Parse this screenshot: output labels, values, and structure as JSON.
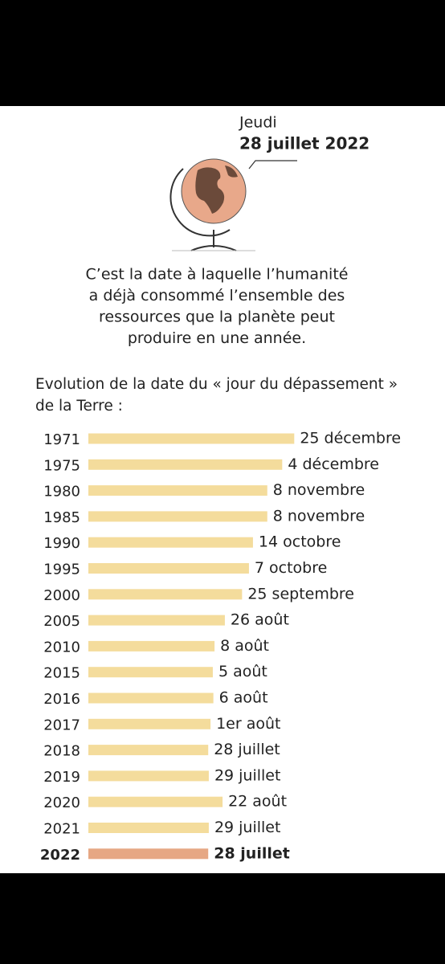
{
  "header": {
    "day": "Jeudi",
    "date": "28 juillet 2022"
  },
  "description": [
    "C’est la date à laquelle l’humanité",
    "a déjà consommé l’ensemble des",
    "ressources que la planète peut",
    "produire en une année."
  ],
  "chart_data": {
    "type": "bar",
    "orientation": "horizontal",
    "title": [
      "Evolution de la date du « jour du dépassement »",
      "de la Terre :"
    ],
    "categories": [
      "1971",
      "1975",
      "1980",
      "1985",
      "1990",
      "1995",
      "2000",
      "2005",
      "2010",
      "2015",
      "2016",
      "2017",
      "2018",
      "2019",
      "2020",
      "2021",
      "2022"
    ],
    "values": [
      359,
      338,
      312,
      312,
      287,
      280,
      268,
      238,
      220,
      217,
      218,
      213,
      209,
      210,
      234,
      210,
      209
    ],
    "value_labels": [
      "25 décembre",
      "4 décembre",
      "8 novembre",
      "8 novembre",
      "14 octobre",
      "7 octobre",
      "25 septembre",
      "26 août",
      "8 août",
      "5 août",
      "6 août",
      "1er août",
      "28 juillet",
      "29 juillet",
      "22 août",
      "29 juillet",
      "28 juillet"
    ],
    "color": "#f4dc9c",
    "highlight_category": "2022",
    "highlight_color": "#e6a784"
  }
}
